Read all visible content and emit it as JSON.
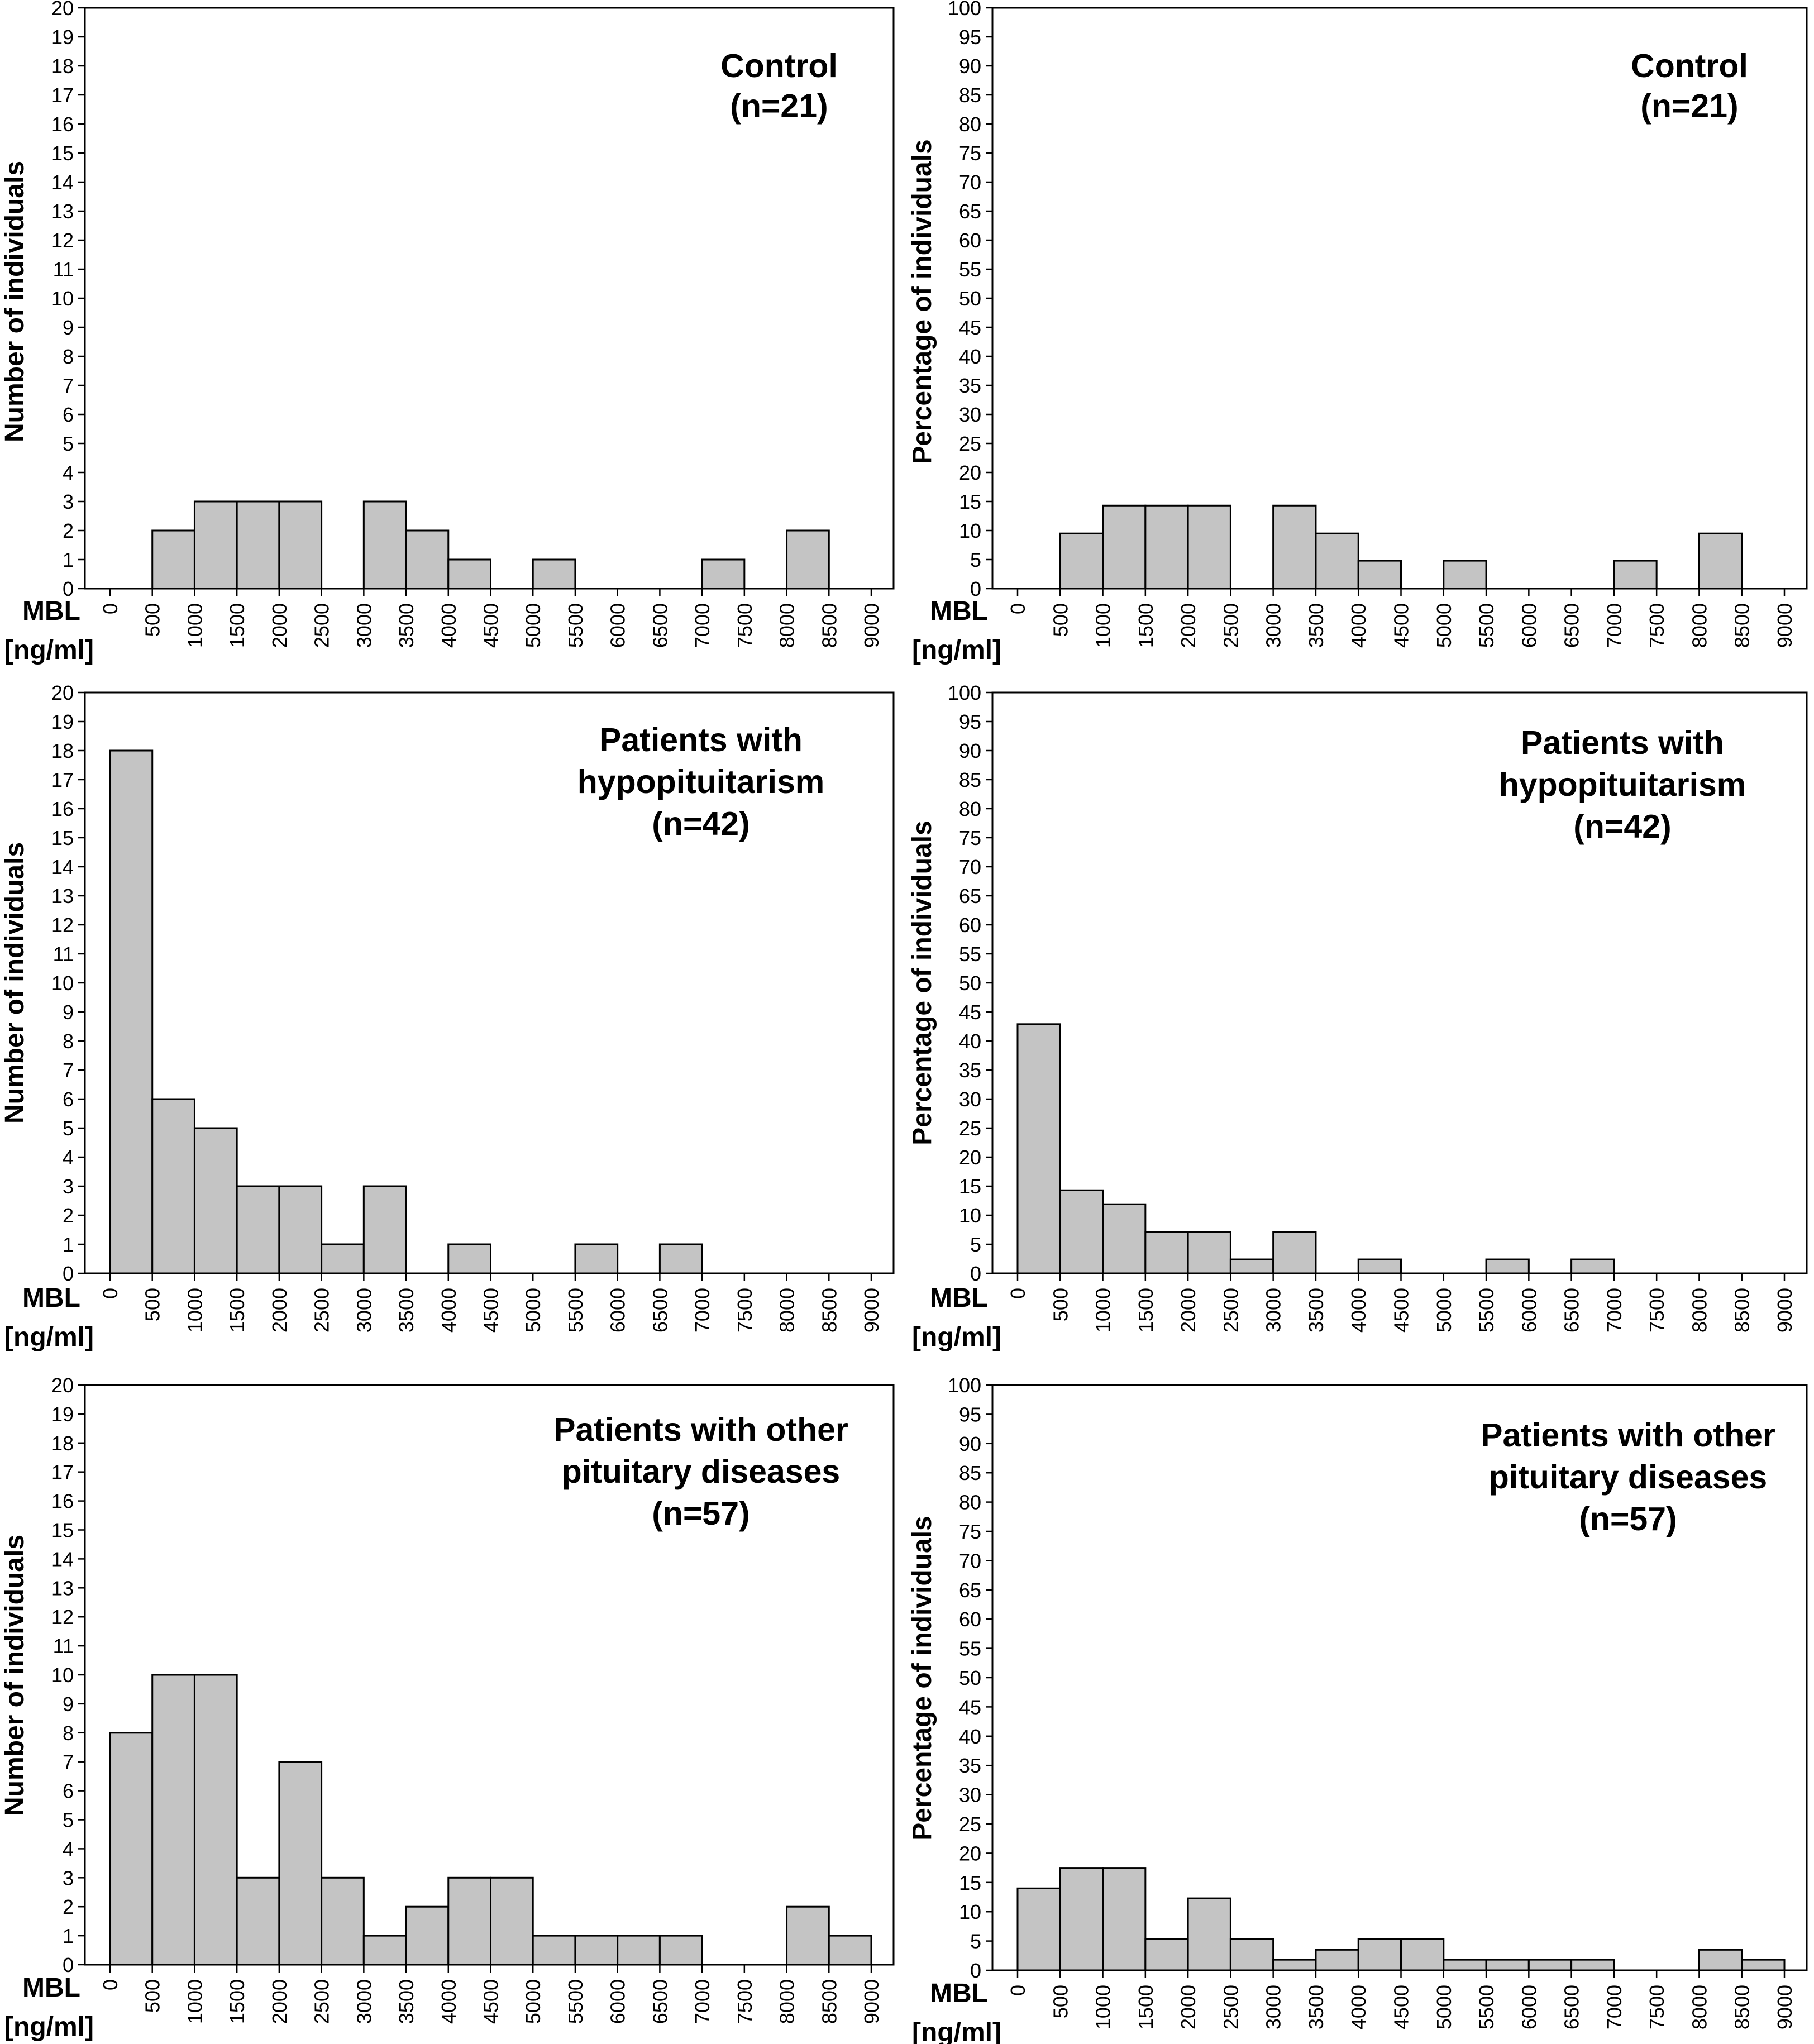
{
  "xlabel": [
    "MBL",
    "[ng/ml]"
  ],
  "chart_data": [
    {
      "type": "bar",
      "title": "Control",
      "annotation": [
        "Control",
        "(n=21)"
      ],
      "ylabel": "Number of individuals",
      "xlabel": "MBL [ng/ml]",
      "ylim": [
        0,
        20
      ],
      "xlim": [
        0,
        9000
      ],
      "bin_width": 500,
      "y_ticks": [
        "0",
        "1",
        "2",
        "3",
        "4",
        "5",
        "6",
        "7",
        "8",
        "9",
        "10",
        "11",
        "12",
        "13",
        "14",
        "15",
        "16",
        "17",
        "18",
        "19",
        "20"
      ],
      "x_ticks": [
        "0",
        "500",
        "1000",
        "1500",
        "2000",
        "2500",
        "3000",
        "3500",
        "4000",
        "4500",
        "5000",
        "5500",
        "6000",
        "6500",
        "7000",
        "7500",
        "8000",
        "8500",
        "9000"
      ],
      "bins": [
        {
          "x0": 500,
          "value": 2
        },
        {
          "x0": 1000,
          "value": 3
        },
        {
          "x0": 1500,
          "value": 3
        },
        {
          "x0": 2000,
          "value": 3
        },
        {
          "x0": 3000,
          "value": 3
        },
        {
          "x0": 3500,
          "value": 2
        },
        {
          "x0": 4000,
          "value": 1
        },
        {
          "x0": 5000,
          "value": 1
        },
        {
          "x0": 7000,
          "value": 1
        },
        {
          "x0": 8000,
          "value": 2
        }
      ]
    },
    {
      "type": "bar",
      "title": "Control",
      "annotation": [
        "Control",
        "(n=21)"
      ],
      "ylabel": "Percentage of individuals",
      "xlabel": "MBL [ng/ml]",
      "ylim": [
        0,
        100
      ],
      "xlim": [
        0,
        9000
      ],
      "bin_width": 500,
      "y_ticks": [
        "0",
        "5",
        "10",
        "15",
        "20",
        "25",
        "30",
        "35",
        "40",
        "45",
        "50",
        "55",
        "60",
        "65",
        "70",
        "75",
        "80",
        "85",
        "90",
        "95",
        "100"
      ],
      "x_ticks": [
        "0",
        "500",
        "1000",
        "1500",
        "2000",
        "2500",
        "3000",
        "3500",
        "4000",
        "4500",
        "5000",
        "5500",
        "6000",
        "6500",
        "7000",
        "7500",
        "8000",
        "8500",
        "9000"
      ],
      "bins": [
        {
          "x0": 500,
          "value": 9.5
        },
        {
          "x0": 1000,
          "value": 14.3
        },
        {
          "x0": 1500,
          "value": 14.3
        },
        {
          "x0": 2000,
          "value": 14.3
        },
        {
          "x0": 3000,
          "value": 14.3
        },
        {
          "x0": 3500,
          "value": 9.5
        },
        {
          "x0": 4000,
          "value": 4.8
        },
        {
          "x0": 5000,
          "value": 4.8
        },
        {
          "x0": 7000,
          "value": 4.8
        },
        {
          "x0": 8000,
          "value": 9.5
        }
      ]
    },
    {
      "type": "bar",
      "title": "Patients with hypopituitarism",
      "annotation": [
        "Patients with",
        "hypopituitarism",
        "(n=42)"
      ],
      "ylabel": "Number of individuals",
      "xlabel": "MBL [ng/ml]",
      "ylim": [
        0,
        20
      ],
      "xlim": [
        0,
        9000
      ],
      "bin_width": 500,
      "y_ticks": [
        "0",
        "1",
        "2",
        "3",
        "4",
        "5",
        "6",
        "7",
        "8",
        "9",
        "10",
        "11",
        "12",
        "13",
        "14",
        "15",
        "16",
        "17",
        "18",
        "19",
        "20"
      ],
      "x_ticks": [
        "0",
        "500",
        "1000",
        "1500",
        "2000",
        "2500",
        "3000",
        "3500",
        "4000",
        "4500",
        "5000",
        "5500",
        "6000",
        "6500",
        "7000",
        "7500",
        "8000",
        "8500",
        "9000"
      ],
      "bins": [
        {
          "x0": 0,
          "value": 18
        },
        {
          "x0": 500,
          "value": 6
        },
        {
          "x0": 1000,
          "value": 5
        },
        {
          "x0": 1500,
          "value": 3
        },
        {
          "x0": 2000,
          "value": 3
        },
        {
          "x0": 2500,
          "value": 1
        },
        {
          "x0": 3000,
          "value": 3
        },
        {
          "x0": 4000,
          "value": 1
        },
        {
          "x0": 5500,
          "value": 1
        },
        {
          "x0": 6500,
          "value": 1
        }
      ]
    },
    {
      "type": "bar",
      "title": "Patients with hypopituitarism",
      "annotation": [
        "Patients with",
        "hypopituitarism",
        "(n=42)"
      ],
      "ylabel": "Percentage of individuals",
      "xlabel": "MBL [ng/ml]",
      "ylim": [
        0,
        100
      ],
      "xlim": [
        0,
        9000
      ],
      "bin_width": 500,
      "y_ticks": [
        "0",
        "5",
        "10",
        "15",
        "20",
        "25",
        "30",
        "35",
        "40",
        "45",
        "50",
        "55",
        "60",
        "65",
        "70",
        "75",
        "80",
        "85",
        "90",
        "95",
        "100"
      ],
      "x_ticks": [
        "0",
        "500",
        "1000",
        "1500",
        "2000",
        "2500",
        "3000",
        "3500",
        "4000",
        "4500",
        "5000",
        "5500",
        "6000",
        "6500",
        "7000",
        "7500",
        "8000",
        "8500",
        "9000"
      ],
      "bins": [
        {
          "x0": 0,
          "value": 42.9
        },
        {
          "x0": 500,
          "value": 14.3
        },
        {
          "x0": 1000,
          "value": 11.9
        },
        {
          "x0": 1500,
          "value": 7.1
        },
        {
          "x0": 2000,
          "value": 7.1
        },
        {
          "x0": 2500,
          "value": 2.4
        },
        {
          "x0": 3000,
          "value": 7.1
        },
        {
          "x0": 4000,
          "value": 2.4
        },
        {
          "x0": 5500,
          "value": 2.4
        },
        {
          "x0": 6500,
          "value": 2.4
        }
      ]
    },
    {
      "type": "bar",
      "title": "Patients with other pituitary diseases",
      "annotation": [
        "Patients with other",
        "pituitary diseases",
        "(n=57)"
      ],
      "ylabel": "Number of individuals",
      "xlabel": "MBL [ng/ml]",
      "ylim": [
        0,
        20
      ],
      "xlim": [
        0,
        9000
      ],
      "bin_width": 500,
      "y_ticks": [
        "0",
        "1",
        "2",
        "3",
        "4",
        "5",
        "6",
        "7",
        "8",
        "9",
        "10",
        "11",
        "12",
        "13",
        "14",
        "15",
        "16",
        "17",
        "18",
        "19",
        "20"
      ],
      "x_ticks": [
        "0",
        "500",
        "1000",
        "1500",
        "2000",
        "2500",
        "3000",
        "3500",
        "4000",
        "4500",
        "5000",
        "5500",
        "6000",
        "6500",
        "7000",
        "7500",
        "8000",
        "8500",
        "9000"
      ],
      "bins": [
        {
          "x0": 0,
          "value": 8
        },
        {
          "x0": 500,
          "value": 10
        },
        {
          "x0": 1000,
          "value": 10
        },
        {
          "x0": 1500,
          "value": 3
        },
        {
          "x0": 2000,
          "value": 7
        },
        {
          "x0": 2500,
          "value": 3
        },
        {
          "x0": 3000,
          "value": 1
        },
        {
          "x0": 3500,
          "value": 2
        },
        {
          "x0": 4000,
          "value": 3
        },
        {
          "x0": 4500,
          "value": 3
        },
        {
          "x0": 5000,
          "value": 1
        },
        {
          "x0": 5500,
          "value": 1
        },
        {
          "x0": 6000,
          "value": 1
        },
        {
          "x0": 6500,
          "value": 1
        },
        {
          "x0": 8000,
          "value": 2
        },
        {
          "x0": 8500,
          "value": 1
        }
      ]
    },
    {
      "type": "bar",
      "title": "Patients with other pituitary diseases",
      "annotation": [
        "Patients with other",
        "pituitary diseases",
        "(n=57)"
      ],
      "ylabel": "Percentage of individuals",
      "xlabel": "MBL [ng/ml]",
      "ylim": [
        0,
        100
      ],
      "xlim": [
        0,
        9000
      ],
      "bin_width": 500,
      "y_ticks": [
        "0",
        "5",
        "10",
        "15",
        "20",
        "25",
        "30",
        "35",
        "40",
        "45",
        "50",
        "55",
        "60",
        "65",
        "70",
        "75",
        "80",
        "85",
        "90",
        "95",
        "100"
      ],
      "x_ticks": [
        "0",
        "500",
        "1000",
        "1500",
        "2000",
        "2500",
        "3000",
        "3500",
        "4000",
        "4500",
        "5000",
        "5500",
        "6000",
        "6500",
        "7000",
        "7500",
        "8000",
        "8500",
        "9000"
      ],
      "bins": [
        {
          "x0": 0,
          "value": 14.0
        },
        {
          "x0": 500,
          "value": 17.5
        },
        {
          "x0": 1000,
          "value": 17.5
        },
        {
          "x0": 1500,
          "value": 5.3
        },
        {
          "x0": 2000,
          "value": 12.3
        },
        {
          "x0": 2500,
          "value": 5.3
        },
        {
          "x0": 3000,
          "value": 1.8
        },
        {
          "x0": 3500,
          "value": 3.5
        },
        {
          "x0": 4000,
          "value": 5.3
        },
        {
          "x0": 4500,
          "value": 5.3
        },
        {
          "x0": 5000,
          "value": 1.8
        },
        {
          "x0": 5500,
          "value": 1.8
        },
        {
          "x0": 6000,
          "value": 1.8
        },
        {
          "x0": 6500,
          "value": 1.8
        },
        {
          "x0": 8000,
          "value": 3.5
        },
        {
          "x0": 8500,
          "value": 1.8
        }
      ]
    }
  ]
}
